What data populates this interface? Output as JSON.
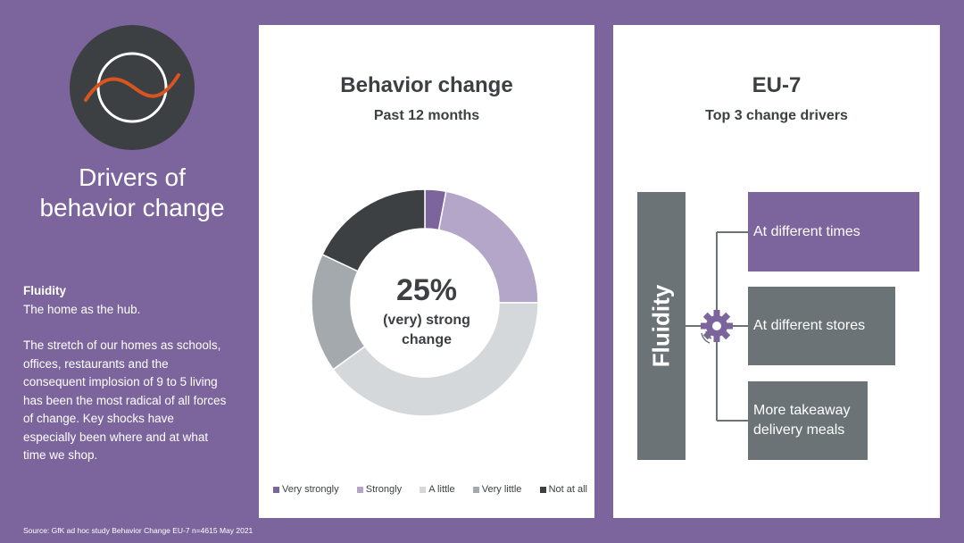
{
  "left_panel": {
    "logo_icon": "wave-in-circle-icon",
    "title_line1": "Drivers of",
    "title_line2": "behavior change",
    "desc_heading": "Fluidity",
    "desc_subheading": "The home as the hub.",
    "desc_body": "The stretch of our homes as schools, offices, restaurants and the consequent implosion of 9 to 5 living has been the most radical of all forces of change. Key shocks have especially been where and at what time we shop.",
    "source": "Source: GfK ad hoc study Behavior Change EU-7 n=4615 May 2021"
  },
  "middle_card": {
    "title": "Behavior change",
    "subtitle": "Past 12 months",
    "center_value": "25%",
    "center_label": "(very) strong change"
  },
  "chart_data": {
    "type": "pie",
    "title": "Behavior change",
    "subtitle": "Past 12 months",
    "donut": true,
    "center_text": "25% (very) strong change",
    "legend_position": "bottom",
    "categories": [
      "Very strongly",
      "Strongly",
      "A little",
      "Very little",
      "Not at all"
    ],
    "values": [
      3,
      22,
      40,
      17,
      18
    ],
    "colors": [
      "#7b659c",
      "#b3a6c8",
      "#d5d8da",
      "#a4a9ad",
      "#3c4043"
    ]
  },
  "right_card": {
    "title": "EU-7",
    "subtitle": "Top 3 change drivers",
    "hub_label": "Fluidity",
    "hub_icon": "gear-icon",
    "drivers": [
      {
        "label": "At different times",
        "color": "#7b659c"
      },
      {
        "label": "At different stores",
        "color": "#6b7377"
      },
      {
        "label": "More takeaway delivery meals",
        "color": "#6b7377"
      }
    ]
  },
  "colors": {
    "background": "#7b659c",
    "dark": "#3c4043",
    "accent_orange": "#d9541e"
  }
}
